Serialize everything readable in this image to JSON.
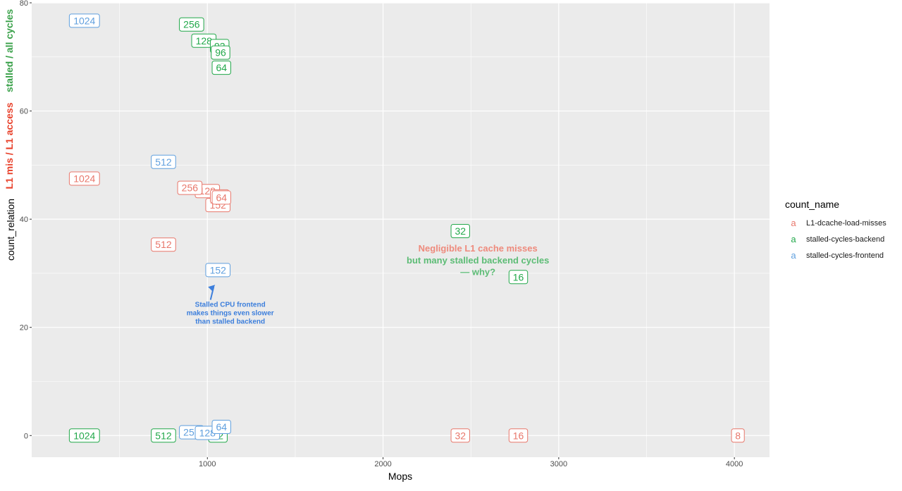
{
  "chart_data": {
    "type": "scatter",
    "xlabel": "Mops",
    "ylabel": "count_relation",
    "xlim": [
      0,
      4200
    ],
    "ylim": [
      -4,
      80
    ],
    "x_ticks": [
      1000,
      2000,
      3000,
      4000
    ],
    "y_ticks": [
      0,
      20,
      40,
      60,
      80
    ],
    "grid": true,
    "legend_position": "right",
    "legend": {
      "title": "count_name",
      "key_glyph": "a"
    },
    "colors": {
      "L1-dcache-load-misses": "#e8776b",
      "stalled-cycles-backend": "#22a84a",
      "stalled-cycles-frontend": "#5f9fde",
      "panel_background": "#ebebeb",
      "grid": "#ffffff",
      "ylabel_l1": "#e8402a",
      "ylabel_stalled": "#3aa14a",
      "frontend_annotation": "#3d7fdc",
      "annotation_red": "#ee8a7c",
      "annotation_green": "#5cbc75"
    },
    "series": [
      {
        "name": "L1-dcache-load-misses",
        "points": [
          {
            "x": 300,
            "y": 47.5,
            "label": "1024"
          },
          {
            "x": 750,
            "y": 35.3,
            "label": "512"
          },
          {
            "x": 1000,
            "y": 45.2,
            "label": "128"
          },
          {
            "x": 900,
            "y": 45.8,
            "label": "256"
          },
          {
            "x": 1060,
            "y": 42.6,
            "label": "152"
          },
          {
            "x": 1070,
            "y": 44.2,
            "label": "96"
          },
          {
            "x": 1080,
            "y": 44.0,
            "label": "64"
          },
          {
            "x": 2440,
            "y": 0.0,
            "label": "32"
          },
          {
            "x": 2770,
            "y": 0.0,
            "label": "16"
          },
          {
            "x": 4020,
            "y": 0.0,
            "label": "8"
          }
        ]
      },
      {
        "name": "stalled-cycles-backend",
        "points": [
          {
            "x": 300,
            "y": 0.0,
            "label": "1024"
          },
          {
            "x": 750,
            "y": 0.0,
            "label": "512"
          },
          {
            "x": 910,
            "y": 76.0,
            "label": "256"
          },
          {
            "x": 980,
            "y": 73.0,
            "label": "128"
          },
          {
            "x": 1070,
            "y": 72.0,
            "label": "92"
          },
          {
            "x": 1075,
            "y": 70.8,
            "label": "96"
          },
          {
            "x": 1080,
            "y": 68.0,
            "label": "64"
          },
          {
            "x": 2440,
            "y": 37.8,
            "label": "32"
          },
          {
            "x": 2770,
            "y": 29.3,
            "label": "16"
          },
          {
            "x": 1060,
            "y": 0.0,
            "label": "92"
          }
        ]
      },
      {
        "name": "stalled-cycles-frontend",
        "points": [
          {
            "x": 300,
            "y": 76.7,
            "label": "1024"
          },
          {
            "x": 750,
            "y": 50.6,
            "label": "512"
          },
          {
            "x": 1060,
            "y": 30.6,
            "label": "152"
          },
          {
            "x": 910,
            "y": 0.6,
            "label": "256"
          },
          {
            "x": 1000,
            "y": 0.5,
            "label": "128"
          },
          {
            "x": 1080,
            "y": 1.6,
            "label": "64"
          }
        ]
      }
    ],
    "annotations": [
      {
        "lines": [
          "Stalled CPU frontend",
          "makes things even slower",
          "than stalled backend"
        ],
        "x": 1130,
        "y": 23.8,
        "color_key": "frontend_annotation"
      },
      {
        "lines": [
          "Negligible L1 cache misses"
        ],
        "x": 2540,
        "y": 34.0,
        "color_key": "annotation_red"
      },
      {
        "lines": [
          "but many stalled backend cycles",
          "— why?"
        ],
        "x": 2540,
        "y": 31.8,
        "color_key": "annotation_green"
      }
    ],
    "ylabel_overlay": {
      "stalled": "stalled / all cycles",
      "l1": "L1 mis / L1 access"
    }
  }
}
